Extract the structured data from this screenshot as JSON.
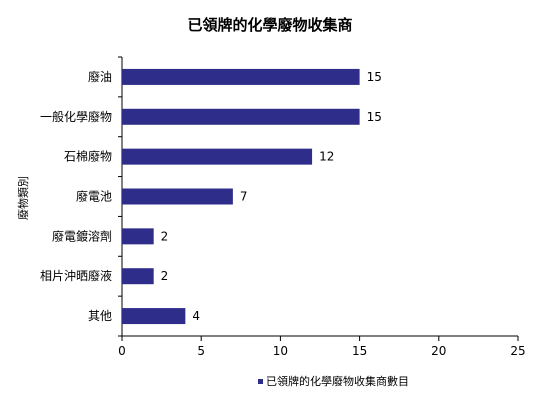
{
  "chart_data": {
    "type": "bar",
    "orientation": "horizontal",
    "title": "已領牌的化學廢物收集商",
    "ylabel": "廢物類別",
    "xlabel": "",
    "categories": [
      "廢油",
      "一般化學廢物",
      "石棉廢物",
      "廢電池",
      "廢電鍍溶劑",
      "相片沖晒廢液",
      "其他"
    ],
    "series": [
      {
        "name": "已領牌的化學廢物收集商數目",
        "values": [
          15,
          15,
          12,
          7,
          2,
          2,
          4
        ],
        "color": "#2e2e8a"
      }
    ],
    "xlim": [
      0,
      25
    ],
    "xticks": [
      0,
      5,
      10,
      15,
      20,
      25
    ],
    "tick_labels": [
      "0",
      "5",
      "10",
      "15",
      "20",
      "25"
    ],
    "data_labels": [
      "15",
      "15",
      "12",
      "7",
      "2",
      "2",
      "4"
    ],
    "grid": false,
    "legend": "bottom-right"
  }
}
